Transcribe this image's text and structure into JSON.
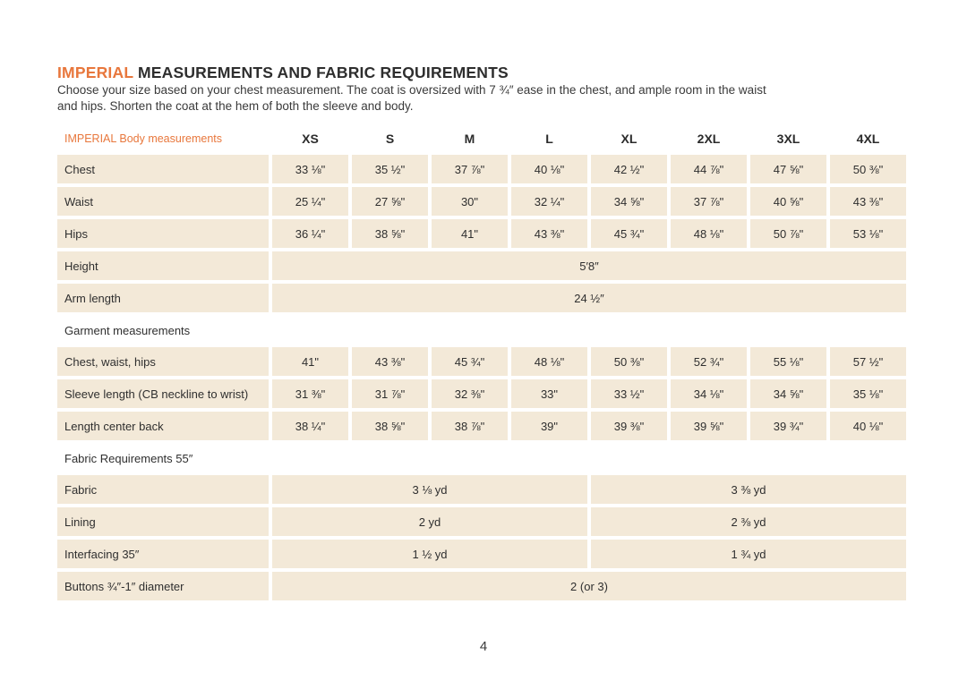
{
  "page": {
    "title_highlight": "IMPERIAL",
    "title_rest": " MEASUREMENTS AND FABRIC REQUIREMENTS",
    "intro_line1": "Choose your size based on your chest measurement. The coat is oversized with 7 ¾″ ease in the chest, and ample room in the waist",
    "intro_line2": "and hips. Shorten the coat at the hem of both the sleeve and body.",
    "page_number": "4"
  },
  "colors": {
    "accent": "#e8773c",
    "cell_background": "#f3e9d8",
    "text": "#2f2f2f"
  },
  "table": {
    "header_label": "IMPERIAL Body measurements",
    "sizes": [
      "XS",
      "S",
      "M",
      "L",
      "XL",
      "2XL",
      "3XL",
      "4XL"
    ],
    "body_rows": [
      {
        "label": "Chest",
        "values": [
          "33 ⅛\"",
          "35 ½\"",
          "37 ⅞\"",
          "40 ⅛\"",
          "42 ½\"",
          "44 ⅞\"",
          "47 ⅝\"",
          "50 ⅜\""
        ]
      },
      {
        "label": "Waist",
        "values": [
          "25 ¼\"",
          "27 ⅝\"",
          "30\"",
          "32 ¼\"",
          "34 ⅝\"",
          "37 ⅞\"",
          "40 ⅝\"",
          "43 ⅜\""
        ]
      },
      {
        "label": "Hips",
        "values": [
          "36 ¼\"",
          "38 ⅝\"",
          "41\"",
          "43 ⅜\"",
          "45 ¾\"",
          "48 ⅛\"",
          "50 ⅞\"",
          "53 ⅛\""
        ]
      }
    ],
    "merged_rows": [
      {
        "label": "Height",
        "value": "5′8″"
      },
      {
        "label": "Arm length",
        "value": "24 ½″"
      }
    ],
    "garment_section_label": "Garment measurements",
    "garment_rows": [
      {
        "label": "Chest, waist, hips",
        "values": [
          "41\"",
          "43 ⅜\"",
          "45 ¾\"",
          "48 ⅛\"",
          "50 ⅜\"",
          "52 ¾\"",
          "55 ⅛\"",
          "57 ½\""
        ]
      },
      {
        "label": "Sleeve length (CB neckline to wrist)",
        "values": [
          "31 ⅜\"",
          "31 ⅞\"",
          "32 ⅜\"",
          "33\"",
          "33 ½\"",
          "34 ⅛\"",
          "34 ⅝\"",
          "35 ⅛\""
        ]
      },
      {
        "label": "Length center back",
        "values": [
          "38 ¼\"",
          "38 ⅝\"",
          "38 ⅞\"",
          "39\"",
          "39 ⅜\"",
          "39 ⅝\"",
          "39 ¾\"",
          "40 ⅛\""
        ]
      }
    ],
    "fabric_section_label": "Fabric Requirements 55″",
    "fabric_rows": [
      {
        "label": "Fabric",
        "left_value": "3 ⅛ yd",
        "right_value": "3 ⅜ yd"
      },
      {
        "label": "Lining",
        "left_value": "2 yd",
        "right_value": "2 ⅜ yd"
      },
      {
        "label": "Interfacing 35″",
        "left_value": "1 ½ yd",
        "right_value": "1 ¾ yd"
      }
    ],
    "buttons_row": {
      "label": "Buttons  ¾″-1″ diameter",
      "value": "2 (or 3)"
    }
  }
}
